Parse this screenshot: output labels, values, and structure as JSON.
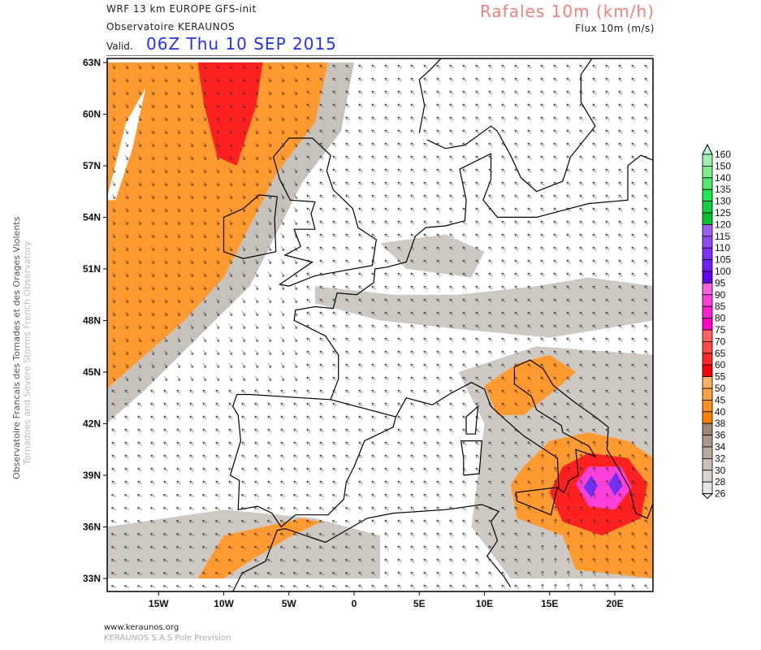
{
  "header": {
    "model": "WRF 13 km EUROPE   GFS-init",
    "observatory": "Observatoire KERAUNOS",
    "valid_label": "Valid.",
    "valid_time": "06Z Thu 10 SEP 2015",
    "field_title": "Rafales 10m (km/h)",
    "field_subtitle": "Flux 10m (m/s)"
  },
  "side_text": {
    "line1": "Observatoire Francais des Tornades et des Orages Violents",
    "line2": "Tornadoes and Severe Storms French Observatory"
  },
  "footer": {
    "url": "www.keraunos.org",
    "company": "KERAUNOS S.A.S Pole Prevision"
  },
  "map": {
    "lat_labels": [
      "63N",
      "60N",
      "57N",
      "54N",
      "51N",
      "48N",
      "45N",
      "42N",
      "39N",
      "36N",
      "33N"
    ],
    "lon_labels": [
      "15W",
      "10W",
      "5W",
      "0",
      "5E",
      "10E",
      "15E",
      "20E"
    ]
  },
  "colorbar": {
    "levels": [
      "160",
      "150",
      "140",
      "135",
      "130",
      "125",
      "120",
      "115",
      "110",
      "105",
      "100",
      "95",
      "90",
      "85",
      "80",
      "75",
      "70",
      "65",
      "60",
      "55",
      "50",
      "45",
      "40",
      "38",
      "36",
      "34",
      "32",
      "30",
      "28",
      "26"
    ],
    "colors": [
      "#b8f5d0",
      "#a0f0b0",
      "#80ee90",
      "#50ea70",
      "#1ee850",
      "#10d040",
      "#00c030",
      "#a060f8",
      "#9048f8",
      "#8030f8",
      "#7020f0",
      "#6000f0",
      "#ff60e0",
      "#ff40d8",
      "#ff20d0",
      "#ff00c8",
      "#ff6060",
      "#ff4848",
      "#ff2828",
      "#ff0000",
      "#ffb060",
      "#ffa040",
      "#ff9020",
      "#ff8000",
      "#a08870",
      "#a89888",
      "#b8aca0",
      "#c8c0b8",
      "#d8d4d0",
      "#e8e6e4"
    ]
  }
}
